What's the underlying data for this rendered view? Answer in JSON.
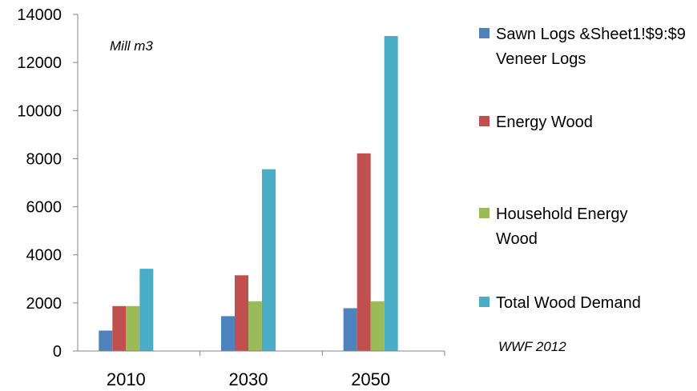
{
  "chart_data": {
    "type": "bar",
    "categories": [
      "2010",
      "2030",
      "2050"
    ],
    "series": [
      {
        "name": "Sawn Logs &Sheet1!$9:$9 Veneer Logs",
        "color": "#4f81bd",
        "values": [
          850,
          1450,
          1780
        ]
      },
      {
        "name": "Energy Wood",
        "color": "#c0504d",
        "values": [
          1870,
          3150,
          8220
        ]
      },
      {
        "name": "Household Energy Wood",
        "color": "#9bbb59",
        "values": [
          1870,
          2070,
          2070
        ]
      },
      {
        "name": "Total Wood Demand",
        "color": "#4bacc6",
        "values": [
          3420,
          7560,
          13100
        ]
      }
    ],
    "ylim": [
      0,
      14000
    ],
    "yticks": [
      0,
      2000,
      4000,
      6000,
      8000,
      10000,
      12000,
      14000
    ],
    "unit_note": "Mill m3",
    "source_note": "WWF 2012",
    "grid": false,
    "legend_position": "right"
  }
}
